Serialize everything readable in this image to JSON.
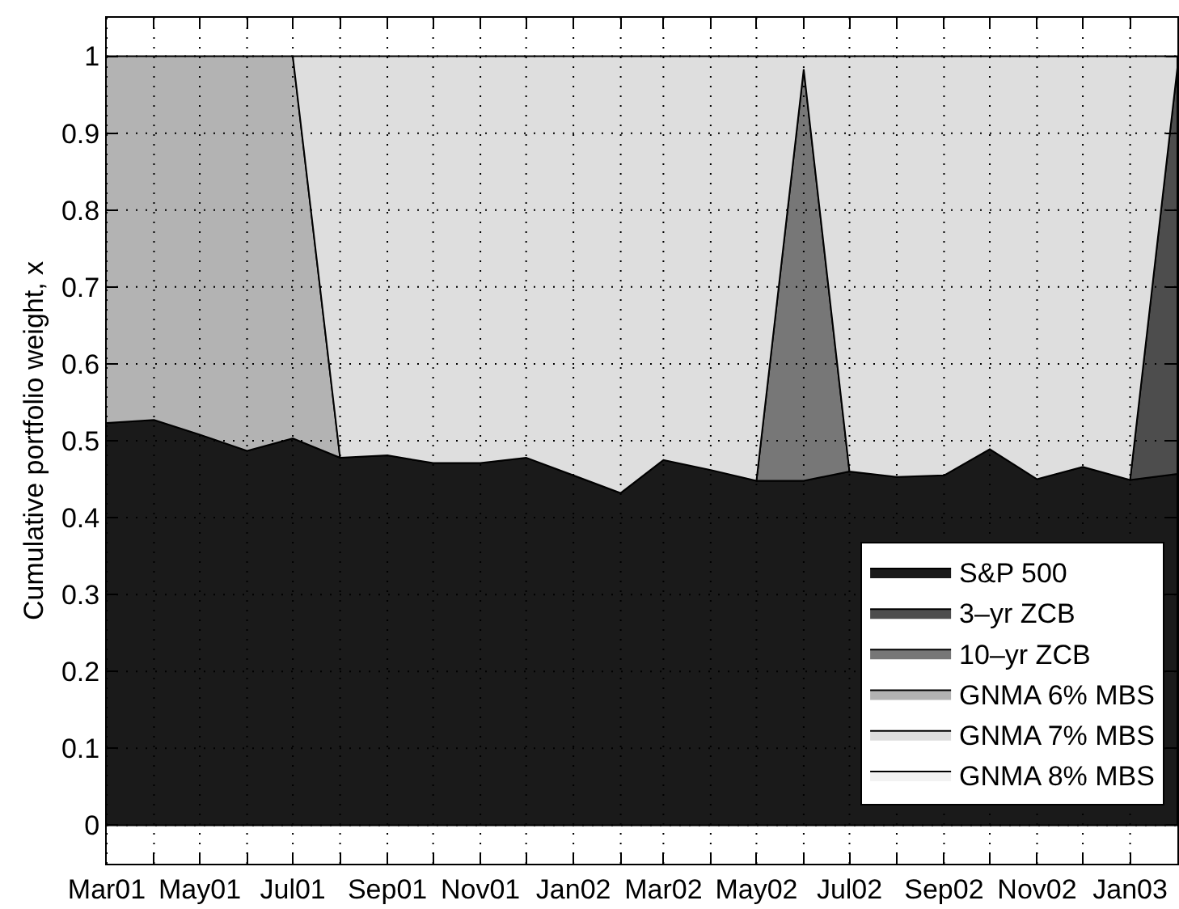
{
  "chart_data": {
    "type": "area",
    "stacked": true,
    "ylabel": "Cumulative portfolio weight, x",
    "x": [
      "2001-03",
      "2001-04",
      "2001-05",
      "2001-06",
      "2001-07",
      "2001-08",
      "2001-09",
      "2001-10",
      "2001-11",
      "2001-12",
      "2002-01",
      "2002-02",
      "2002-03",
      "2002-04",
      "2002-05",
      "2002-06",
      "2002-07",
      "2002-08",
      "2002-09",
      "2002-10",
      "2002-11",
      "2002-12",
      "2003-01",
      "2003-02"
    ],
    "xlim": [
      "2001-03",
      "2003-02"
    ],
    "xticks": [
      {
        "value": "2001-03",
        "label": "Mar01"
      },
      {
        "value": "2001-04",
        "label": null
      },
      {
        "value": "2001-05",
        "label": "May01"
      },
      {
        "value": "2001-06",
        "label": null
      },
      {
        "value": "2001-07",
        "label": "Jul01"
      },
      {
        "value": "2001-08",
        "label": null
      },
      {
        "value": "2001-09",
        "label": "Sep01"
      },
      {
        "value": "2001-10",
        "label": null
      },
      {
        "value": "2001-11",
        "label": "Nov01"
      },
      {
        "value": "2001-12",
        "label": null
      },
      {
        "value": "2002-01",
        "label": "Jan02"
      },
      {
        "value": "2002-02",
        "label": null
      },
      {
        "value": "2002-03",
        "label": "Mar02"
      },
      {
        "value": "2002-04",
        "label": null
      },
      {
        "value": "2002-05",
        "label": "May02"
      },
      {
        "value": "2002-06",
        "label": null
      },
      {
        "value": "2002-07",
        "label": "Jul02"
      },
      {
        "value": "2002-08",
        "label": null
      },
      {
        "value": "2002-09",
        "label": "Sep02"
      },
      {
        "value": "2002-10",
        "label": null
      },
      {
        "value": "2002-11",
        "label": "Nov02"
      },
      {
        "value": "2002-12",
        "label": null
      },
      {
        "value": "2003-01",
        "label": "Jan03"
      }
    ],
    "ylim": [
      -0.05,
      1.05
    ],
    "yticks": [
      0,
      0.1,
      0.2,
      0.3,
      0.4,
      0.5,
      0.6,
      0.7,
      0.8,
      0.9,
      1
    ],
    "grid": true,
    "legend": "bottom right",
    "series": [
      {
        "name": "S&P 500",
        "color": "#1a1a1a",
        "values": [
          0.523,
          0.527,
          0.508,
          0.487,
          0.503,
          0.478,
          0.481,
          0.471,
          0.471,
          0.478,
          0.455,
          0.432,
          0.475,
          0.462,
          0.448,
          0.448,
          0.46,
          0.453,
          0.455,
          0.489,
          0.45,
          0.466,
          0.449,
          0.457
        ]
      },
      {
        "name": "3–yr ZCB",
        "color": "#4d4d4d",
        "values": [
          null,
          null,
          null,
          null,
          null,
          null,
          null,
          null,
          null,
          null,
          null,
          null,
          null,
          null,
          null,
          null,
          null,
          null,
          null,
          null,
          null,
          null,
          0,
          0.528
        ]
      },
      {
        "name": "10–yr ZCB",
        "color": "#777777",
        "values": [
          null,
          null,
          null,
          null,
          null,
          null,
          null,
          null,
          null,
          null,
          null,
          null,
          null,
          null,
          0,
          0.535,
          0,
          null,
          null,
          null,
          null,
          null,
          null,
          null
        ]
      },
      {
        "name": "GNMA 6% MBS",
        "color": "#b3b3b3",
        "values": [
          0.477,
          0.473,
          0.492,
          0.513,
          0.497,
          0,
          null,
          null,
          null,
          null,
          null,
          null,
          null,
          null,
          null,
          null,
          null,
          null,
          null,
          null,
          null,
          null,
          null,
          null
        ]
      },
      {
        "name": "GNMA 7% MBS",
        "color": "#dedede",
        "values": [
          null,
          null,
          null,
          null,
          0,
          0.522,
          0.519,
          0.529,
          0.529,
          0.522,
          0.545,
          0.568,
          0.525,
          0.538,
          0.552,
          0.017,
          0.54,
          0.547,
          0.545,
          0.511,
          0.55,
          0.534,
          0.551,
          0.015
        ]
      },
      {
        "name": "GNMA 8% MBS",
        "color": "#f2f2f2",
        "values": [
          null,
          null,
          null,
          null,
          null,
          null,
          null,
          null,
          null,
          null,
          null,
          null,
          null,
          null,
          null,
          null,
          null,
          null,
          null,
          null,
          null,
          null,
          null,
          null
        ]
      }
    ]
  }
}
